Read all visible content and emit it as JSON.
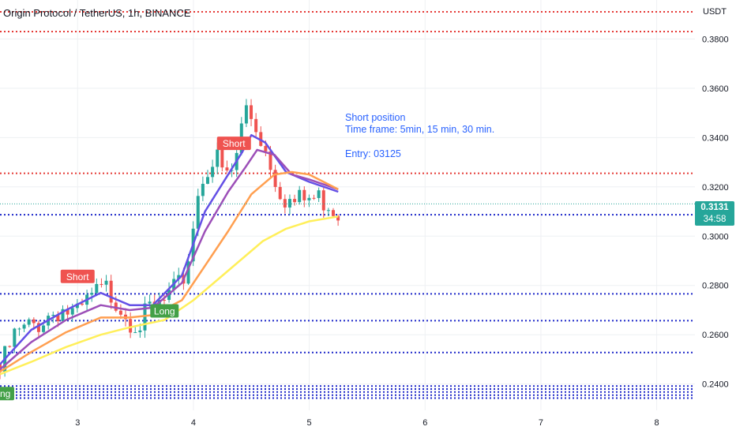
{
  "header": {
    "title": "Origin Protocol / TetherUS, 1h, BINANCE",
    "currency": "USDT"
  },
  "annotations": {
    "line1": "Short position",
    "line2": "Time frame:  5min, 15 min, 30 min.",
    "line3": "Entry: 03125"
  },
  "price_badge": {
    "price": "0.3131",
    "countdown": "34:58",
    "color": "#26a69a"
  },
  "colors": {
    "up": "#26a69a",
    "down": "#ef5350",
    "ma_blue": "#6450e6",
    "ma_purple": "#9c4fb8",
    "ma_orange": "#ff9f50",
    "ma_yellow": "#ffef5a",
    "level_red": "#e53935",
    "level_blue": "#1d27c9",
    "grid": "#eef0f3",
    "axis_text": "#131722"
  },
  "chart_data": {
    "type": "candlestick",
    "x_axis": {
      "tick_labels": [
        "3",
        "4",
        "5",
        "6",
        "7",
        "8"
      ],
      "tick_values": [
        3,
        4,
        5,
        6,
        7,
        8
      ],
      "range": [
        2.33,
        8.33
      ]
    },
    "y_axis": {
      "tick_labels": [
        "0.2400",
        "0.2600",
        "0.2800",
        "0.3000",
        "0.3200",
        "0.3400",
        "0.3600",
        "0.3800"
      ],
      "tick_values": [
        0.24,
        0.26,
        0.28,
        0.3,
        0.32,
        0.34,
        0.36,
        0.38
      ],
      "range": [
        0.2335,
        0.391
      ],
      "position": "right"
    },
    "grid": true,
    "current_price": 0.3131,
    "close_series": [
      {
        "x": 2.33,
        "close": 0.248
      },
      {
        "x": 2.45,
        "close": 0.262
      },
      {
        "x": 2.6,
        "close": 0.266
      },
      {
        "x": 2.75,
        "close": 0.271
      },
      {
        "x": 2.85,
        "close": 0.274
      },
      {
        "x": 3.0,
        "close": 0.27
      },
      {
        "x": 3.12,
        "close": 0.278
      },
      {
        "x": 3.25,
        "close": 0.281
      },
      {
        "x": 3.33,
        "close": 0.278
      },
      {
        "x": 3.45,
        "close": 0.27
      },
      {
        "x": 3.55,
        "close": 0.268
      },
      {
        "x": 3.62,
        "close": 0.272
      },
      {
        "x": 3.75,
        "close": 0.276
      },
      {
        "x": 3.88,
        "close": 0.282
      },
      {
        "x": 3.95,
        "close": 0.292
      },
      {
        "x": 4.02,
        "close": 0.316
      },
      {
        "x": 4.1,
        "close": 0.331
      },
      {
        "x": 4.2,
        "close": 0.334
      },
      {
        "x": 4.28,
        "close": 0.326
      },
      {
        "x": 4.35,
        "close": 0.33
      },
      {
        "x": 4.45,
        "close": 0.356
      },
      {
        "x": 4.55,
        "close": 0.347
      },
      {
        "x": 4.65,
        "close": 0.335
      },
      {
        "x": 4.75,
        "close": 0.322
      },
      {
        "x": 4.85,
        "close": 0.316
      },
      {
        "x": 5.0,
        "close": 0.318
      },
      {
        "x": 5.15,
        "close": 0.318
      },
      {
        "x": 5.25,
        "close": 0.3131
      }
    ],
    "moving_averages": [
      {
        "color": "#6450e6",
        "points": [
          [
            2.33,
            0.248
          ],
          [
            2.6,
            0.262
          ],
          [
            2.9,
            0.27
          ],
          [
            3.2,
            0.277
          ],
          [
            3.45,
            0.272
          ],
          [
            3.65,
            0.272
          ],
          [
            3.9,
            0.284
          ],
          [
            4.1,
            0.31
          ],
          [
            4.3,
            0.325
          ],
          [
            4.42,
            0.334
          ],
          [
            4.5,
            0.341
          ],
          [
            4.62,
            0.338
          ],
          [
            4.8,
            0.326
          ],
          [
            5.0,
            0.322
          ],
          [
            5.25,
            0.318
          ]
        ]
      },
      {
        "color": "#9c4fb8",
        "points": [
          [
            2.33,
            0.246
          ],
          [
            2.6,
            0.257
          ],
          [
            2.9,
            0.266
          ],
          [
            3.2,
            0.272
          ],
          [
            3.45,
            0.27
          ],
          [
            3.65,
            0.271
          ],
          [
            3.9,
            0.281
          ],
          [
            4.1,
            0.302
          ],
          [
            4.3,
            0.318
          ],
          [
            4.45,
            0.328
          ],
          [
            4.55,
            0.335
          ],
          [
            4.7,
            0.333
          ],
          [
            4.85,
            0.325
          ],
          [
            5.0,
            0.323
          ],
          [
            5.25,
            0.319
          ]
        ]
      },
      {
        "color": "#ff9f50",
        "points": [
          [
            2.33,
            0.245
          ],
          [
            2.6,
            0.253
          ],
          [
            2.9,
            0.261
          ],
          [
            3.2,
            0.267
          ],
          [
            3.45,
            0.267
          ],
          [
            3.65,
            0.268
          ],
          [
            3.9,
            0.274
          ],
          [
            4.1,
            0.288
          ],
          [
            4.3,
            0.302
          ],
          [
            4.5,
            0.317
          ],
          [
            4.7,
            0.325
          ],
          [
            4.85,
            0.326
          ],
          [
            5.0,
            0.325
          ],
          [
            5.25,
            0.319
          ]
        ]
      },
      {
        "color": "#ffef5a",
        "points": [
          [
            2.33,
            0.244
          ],
          [
            2.6,
            0.249
          ],
          [
            2.9,
            0.255
          ],
          [
            3.2,
            0.26
          ],
          [
            3.45,
            0.263
          ],
          [
            3.75,
            0.266
          ],
          [
            4.0,
            0.274
          ],
          [
            4.2,
            0.282
          ],
          [
            4.4,
            0.29
          ],
          [
            4.6,
            0.298
          ],
          [
            4.8,
            0.303
          ],
          [
            5.0,
            0.306
          ],
          [
            5.25,
            0.308
          ]
        ]
      }
    ],
    "levels": [
      {
        "price": 0.391,
        "color": "#e53935"
      },
      {
        "price": 0.383,
        "color": "#e53935"
      },
      {
        "price": 0.3255,
        "color": "#e53935"
      },
      {
        "price": 0.3087,
        "color": "#1d27c9"
      },
      {
        "price": 0.2766,
        "color": "#1d27c9"
      },
      {
        "price": 0.2657,
        "color": "#1d27c9"
      },
      {
        "price": 0.2528,
        "color": "#1d27c9"
      },
      {
        "price": 0.2392,
        "color": "#1d27c9"
      },
      {
        "price": 0.238,
        "color": "#1d27c9"
      },
      {
        "price": 0.2368,
        "color": "#1d27c9"
      },
      {
        "price": 0.2355,
        "color": "#1d27c9"
      },
      {
        "price": 0.2343,
        "color": "#1d27c9"
      }
    ],
    "signals": [
      {
        "label": "Short",
        "x": 3.0,
        "price": 0.2835,
        "color": "#ef5350"
      },
      {
        "label": "Short",
        "x": 4.35,
        "price": 0.3375,
        "color": "#ef5350"
      },
      {
        "label": "Long",
        "x": 3.75,
        "price": 0.2695,
        "color": "#43a047"
      },
      {
        "label": "Long",
        "x": 2.33,
        "price": 0.236,
        "color": "#43a047"
      }
    ]
  }
}
